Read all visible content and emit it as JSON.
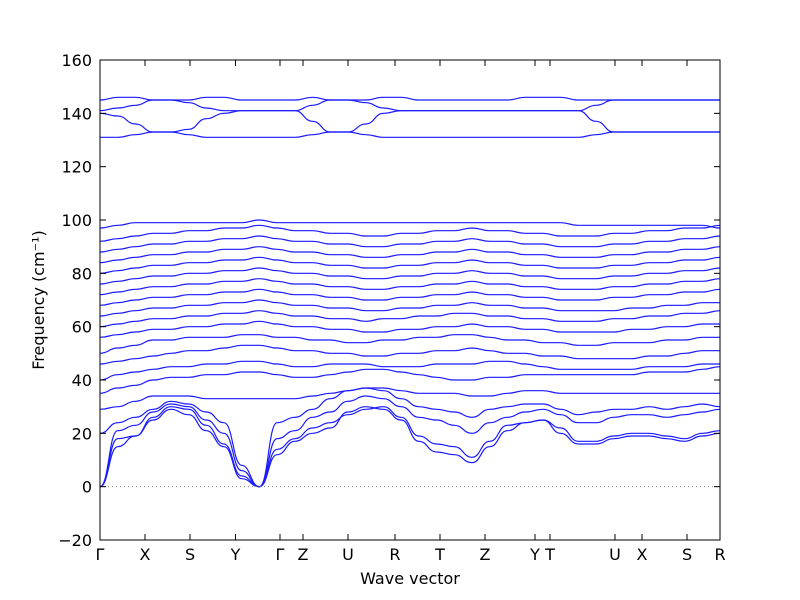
{
  "chart_data": {
    "type": "line",
    "xlabel": "Wave vector",
    "ylabel": "Frequency (cm⁻¹)",
    "ylim": [
      -20,
      160
    ],
    "y_ticks": [
      -20,
      0,
      20,
      40,
      60,
      80,
      100,
      120,
      140,
      160
    ],
    "x_ticks": [
      "Γ",
      "X",
      "S",
      "Y",
      "Γ",
      "Z",
      "U",
      "R",
      "T",
      "Z",
      "Y",
      "T",
      "U",
      "X",
      "S",
      "R"
    ],
    "grid": false,
    "zero_line": true,
    "colors": {
      "bands": "#1a1aff",
      "zero_line": "#888888"
    },
    "series": [
      {
        "values": [
          0,
          15,
          19,
          26,
          30,
          29,
          23,
          16,
          4,
          0,
          12,
          17,
          20,
          22,
          28,
          30,
          29,
          25,
          17,
          13,
          12,
          9,
          15,
          21,
          24,
          25,
          20,
          16,
          16,
          18,
          19,
          19,
          18,
          17,
          19,
          20
        ]
      },
      {
        "values": [
          0,
          18,
          19,
          25,
          29,
          27,
          21,
          15,
          3,
          0,
          14,
          18,
          22,
          24,
          27,
          29,
          30,
          26,
          19,
          16,
          15,
          11,
          17,
          23,
          24,
          25,
          22,
          17,
          17,
          19,
          20,
          20,
          19,
          18,
          20,
          21
        ]
      },
      {
        "values": [
          0,
          21,
          23,
          28,
          31,
          30,
          25,
          20,
          6,
          0,
          18,
          21,
          26,
          28,
          32,
          34,
          33,
          30,
          26,
          25,
          23,
          20,
          24,
          26,
          28,
          29,
          27,
          24,
          24,
          26,
          27,
          27,
          26,
          27,
          28,
          29
        ]
      },
      {
        "values": [
          20,
          24,
          26,
          29,
          32,
          31,
          28,
          24,
          8,
          0,
          24,
          26,
          29,
          33,
          36,
          37,
          36,
          33,
          30,
          29,
          28,
          26,
          29,
          30,
          31,
          31,
          29,
          27,
          28,
          29,
          29,
          30,
          29,
          30,
          31,
          30
        ]
      },
      {
        "values": [
          29,
          30,
          32,
          34,
          34,
          34,
          33,
          33,
          33,
          33,
          33,
          33,
          34,
          35,
          36,
          37,
          37,
          36,
          35,
          35,
          35,
          34,
          34,
          35,
          36,
          36,
          35,
          35,
          35,
          35,
          35,
          35,
          35,
          35,
          35,
          35
        ]
      },
      {
        "values": [
          35,
          37,
          38,
          40,
          41,
          41,
          42,
          42,
          43,
          43,
          42,
          41,
          41,
          42,
          43,
          44,
          44,
          43,
          42,
          41,
          40,
          40,
          41,
          41,
          42,
          42,
          42,
          42,
          42,
          42,
          42,
          43,
          43,
          43,
          44,
          45
        ]
      },
      {
        "values": [
          40,
          42,
          43,
          44,
          45,
          45,
          46,
          46,
          47,
          47,
          46,
          45,
          45,
          46,
          46,
          46,
          45,
          45,
          45,
          46,
          46,
          46,
          47,
          47,
          46,
          45,
          44,
          44,
          44,
          44,
          44,
          45,
          45,
          45,
          46,
          46
        ]
      },
      {
        "values": [
          46,
          47,
          48,
          49,
          50,
          51,
          51,
          52,
          53,
          53,
          52,
          51,
          51,
          50,
          50,
          49,
          49,
          50,
          50,
          51,
          51,
          52,
          51,
          50,
          50,
          49,
          49,
          48,
          48,
          48,
          48,
          49,
          49,
          50,
          51,
          51
        ]
      },
      {
        "values": [
          50,
          52,
          53,
          55,
          55,
          56,
          56,
          56,
          57,
          57,
          56,
          56,
          55,
          55,
          54,
          54,
          55,
          55,
          56,
          56,
          57,
          57,
          56,
          55,
          55,
          54,
          54,
          53,
          53,
          54,
          54,
          54,
          55,
          55,
          56,
          56
        ]
      },
      {
        "values": [
          56,
          57,
          58,
          59,
          59,
          60,
          60,
          61,
          61,
          62,
          61,
          60,
          60,
          59,
          59,
          58,
          58,
          59,
          59,
          60,
          60,
          61,
          60,
          60,
          59,
          59,
          58,
          58,
          58,
          58,
          59,
          59,
          60,
          60,
          61,
          61
        ]
      },
      {
        "values": [
          60,
          61,
          62,
          63,
          63,
          64,
          64,
          65,
          65,
          66,
          65,
          64,
          64,
          63,
          63,
          62,
          63,
          63,
          64,
          64,
          65,
          65,
          64,
          64,
          63,
          63,
          62,
          62,
          62,
          63,
          63,
          64,
          64,
          65,
          65,
          66
        ]
      },
      {
        "values": [
          64,
          65,
          66,
          67,
          67,
          68,
          68,
          69,
          69,
          70,
          69,
          68,
          68,
          67,
          67,
          66,
          66,
          67,
          67,
          68,
          68,
          69,
          68,
          68,
          67,
          67,
          66,
          66,
          66,
          66,
          67,
          67,
          68,
          68,
          69,
          69
        ]
      },
      {
        "values": [
          68,
          69,
          70,
          71,
          71,
          72,
          72,
          73,
          73,
          74,
          73,
          72,
          72,
          71,
          71,
          70,
          70,
          71,
          71,
          72,
          72,
          73,
          72,
          72,
          71,
          71,
          70,
          70,
          70,
          71,
          71,
          72,
          72,
          73,
          73,
          74
        ]
      },
      {
        "values": [
          72,
          73,
          74,
          75,
          75,
          76,
          76,
          77,
          77,
          78,
          77,
          76,
          76,
          75,
          75,
          74,
          74,
          75,
          75,
          76,
          76,
          77,
          76,
          76,
          75,
          75,
          74,
          74,
          74,
          75,
          75,
          76,
          76,
          77,
          77,
          78
        ]
      },
      {
        "values": [
          76,
          77,
          78,
          79,
          79,
          80,
          80,
          81,
          81,
          82,
          81,
          80,
          80,
          79,
          79,
          78,
          78,
          79,
          79,
          80,
          80,
          81,
          80,
          80,
          79,
          79,
          78,
          78,
          78,
          79,
          79,
          80,
          80,
          81,
          81,
          82
        ]
      },
      {
        "values": [
          80,
          81,
          82,
          83,
          83,
          84,
          84,
          85,
          85,
          86,
          85,
          84,
          84,
          83,
          83,
          82,
          82,
          83,
          83,
          84,
          84,
          85,
          84,
          84,
          83,
          83,
          82,
          82,
          82,
          83,
          83,
          84,
          84,
          85,
          85,
          86
        ]
      },
      {
        "values": [
          84,
          85,
          86,
          87,
          87,
          88,
          88,
          89,
          89,
          90,
          89,
          88,
          88,
          87,
          87,
          86,
          86,
          87,
          87,
          88,
          88,
          89,
          88,
          88,
          87,
          87,
          86,
          86,
          86,
          87,
          87,
          88,
          88,
          89,
          89,
          90
        ]
      },
      {
        "values": [
          88,
          89,
          90,
          91,
          91,
          92,
          92,
          93,
          93,
          94,
          93,
          92,
          92,
          91,
          91,
          90,
          90,
          91,
          91,
          92,
          92,
          93,
          92,
          92,
          91,
          91,
          90,
          90,
          90,
          91,
          91,
          92,
          92,
          93,
          93,
          94
        ]
      },
      {
        "values": [
          92,
          93,
          94,
          95,
          95,
          96,
          96,
          97,
          97,
          98,
          97,
          96,
          96,
          95,
          95,
          94,
          94,
          95,
          95,
          96,
          96,
          97,
          96,
          96,
          95,
          95,
          94,
          94,
          94,
          95,
          95,
          96,
          96,
          97,
          97,
          98
        ]
      },
      {
        "values": [
          97,
          98,
          99,
          99,
          99,
          99,
          99,
          99,
          99,
          100,
          99,
          99,
          99,
          99,
          99,
          99,
          99,
          99,
          99,
          99,
          99,
          99,
          99,
          99,
          99,
          99,
          99,
          98,
          98,
          98,
          98,
          98,
          98,
          98,
          98,
          97
        ]
      },
      {
        "values": [
          131,
          131,
          132,
          133,
          133,
          132,
          131,
          131,
          131,
          131,
          131,
          131,
          132,
          133,
          133,
          132,
          131,
          131,
          131,
          131,
          131,
          131,
          131,
          131,
          131,
          131,
          131,
          131,
          132,
          133,
          133,
          133,
          133,
          133,
          133,
          133
        ]
      },
      {
        "values": [
          140,
          139,
          136,
          133,
          133,
          134,
          138,
          140,
          141,
          141,
          141,
          141,
          137,
          133,
          133,
          136,
          140,
          141,
          141,
          141,
          141,
          141,
          141,
          141,
          141,
          141,
          141,
          141,
          137,
          133,
          133,
          133,
          133,
          133,
          133,
          133
        ]
      },
      {
        "values": [
          141,
          142,
          143,
          145,
          145,
          144,
          142,
          141,
          141,
          141,
          141,
          141,
          143,
          145,
          145,
          144,
          142,
          141,
          141,
          141,
          141,
          141,
          141,
          141,
          141,
          141,
          141,
          141,
          143,
          145,
          145,
          145,
          145,
          145,
          145,
          145
        ]
      },
      {
        "values": [
          145,
          146,
          146,
          145,
          145,
          145,
          146,
          146,
          145,
          145,
          145,
          145,
          146,
          145,
          145,
          145,
          146,
          146,
          145,
          145,
          145,
          145,
          145,
          145,
          146,
          146,
          146,
          145,
          145,
          145,
          145,
          145,
          145,
          145,
          145,
          145
        ]
      }
    ]
  }
}
